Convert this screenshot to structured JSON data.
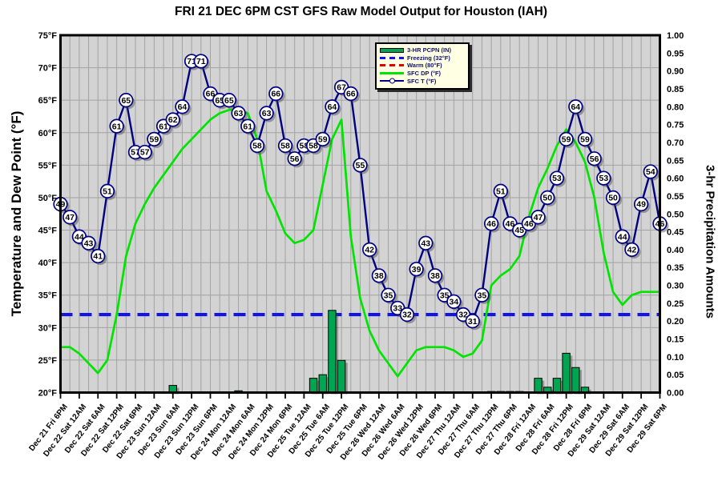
{
  "title": "FRI 21 DEC 6PM CST GFS Raw Model Output for Houston (IAH)",
  "colors": {
    "temperature_line": "#000080",
    "dewpoint_line": "#00e400",
    "freezing_line": "#1414e6",
    "warm_line": "#e00000",
    "precip_bar_fill": "#00a551",
    "precip_bar_border": "#000000",
    "plot_background": "#d3d3d3",
    "gridline": "#a2a2a2",
    "plot_border": "#000000",
    "legend_background": "#ffffe4",
    "legend_text": "#101070",
    "axis_text": "#000000"
  },
  "legend": {
    "items": [
      {
        "label": "3-HR PCPN (IN)",
        "swatch": "green-bar"
      },
      {
        "label": "Freezing (32°F)",
        "swatch": "blue-dashed-line"
      },
      {
        "label": "Warm (80°F)",
        "swatch": "red-dashed-line"
      },
      {
        "label": "SFC DP (°F)",
        "swatch": "green-line"
      },
      {
        "label": "SFC T (°F)",
        "swatch": "navy-line-circle-marker"
      }
    ]
  },
  "chart_data": {
    "type": "line",
    "title": "FRI 21 DEC 6PM CST GFS Raw Model Output for Houston (IAH)",
    "x_interval_hours": 3,
    "x_points_count": 65,
    "x_tick_labels": [
      "Dec 21 Fri 6PM",
      "Dec 22 Sat 12AM",
      "Dec 22 Sat 6AM",
      "Dec 22 Sat 12PM",
      "Dec 22 Sat 6PM",
      "Dec 23 Sun 12AM",
      "Dec 23 Sun 6AM",
      "Dec 23 Sun 12PM",
      "Dec 23 Sun 6PM",
      "Dec 24 Mon 12AM",
      "Dec 24 Mon 6AM",
      "Dec 24 Mon 12PM",
      "Dec 24 Mon 6PM",
      "Dec 25 Tue 12AM",
      "Dec 25 Tue 6AM",
      "Dec 25 Tue 12PM",
      "Dec 25 Tue 6PM",
      "Dec 26 Wed 12AM",
      "Dec 26 Wed 6AM",
      "Dec 26 Wed 12PM",
      "Dec 26 Wed 6PM",
      "Dec 27 Thu 12AM",
      "Dec 27 Thu 6AM",
      "Dec 27 Thu 12PM",
      "Dec 27 Thu 6PM",
      "Dec 28 Fri 12AM",
      "Dec 28 Fri 6AM",
      "Dec 28 Fri 12PM",
      "Dec 28 Fri 6PM",
      "Dec 29 Sat 12AM",
      "Dec 29 Sat 6AM",
      "Dec 29 Sat 12PM",
      "Dec 29 Sat 6PM"
    ],
    "y_left": {
      "label": "Temperature and Dew Point (°F)",
      "min": 20,
      "max": 75,
      "step": 5,
      "tick_labels": [
        "75°F",
        "70°F",
        "65°F",
        "60°F",
        "55°F",
        "50°F",
        "45°F",
        "40°F",
        "35°F",
        "30°F",
        "25°F",
        "20°F"
      ]
    },
    "y_right": {
      "label": "3-hr Precipitation Amounts",
      "min": 0,
      "max": 1,
      "step": 0.05,
      "tick_labels": [
        "1.00",
        "0.95",
        "0.90",
        "0.85",
        "0.80",
        "0.75",
        "0.70",
        "0.65",
        "0.60",
        "0.55",
        "0.50",
        "0.45",
        "0.40",
        "0.35",
        "0.30",
        "0.25",
        "0.20",
        "0.15",
        "0.10",
        "0.05",
        "0.00"
      ]
    },
    "series": [
      {
        "name": "SFC T (°F)",
        "type": "line-numbered-markers",
        "color": "#000080",
        "values": [
          49,
          47,
          44,
          43,
          41,
          51,
          61,
          65,
          57,
          57,
          59,
          61,
          62,
          64,
          71,
          71,
          66,
          65,
          65,
          63,
          61,
          58,
          63,
          66,
          58,
          56,
          58,
          58,
          59,
          64,
          67,
          66,
          55,
          42,
          38,
          35,
          33,
          32,
          39,
          43,
          38,
          35,
          34,
          32,
          31,
          35,
          46,
          51,
          46,
          45,
          46,
          47,
          50,
          53,
          59,
          64,
          59,
          56,
          53,
          50,
          44,
          42,
          49,
          54,
          46
        ]
      },
      {
        "name": "SFC DP (°F)",
        "type": "line",
        "color": "#00e400",
        "values": [
          27,
          27,
          26,
          24.5,
          23,
          25,
          32,
          41,
          46,
          49,
          51.5,
          53.5,
          55.5,
          57.5,
          59,
          60.5,
          62,
          63,
          63.5,
          63.5,
          63,
          59,
          51,
          48,
          44.5,
          43,
          43.5,
          45,
          52,
          59,
          62,
          44,
          34.5,
          29.5,
          26.5,
          24.5,
          22.5,
          24.5,
          26.5,
          27,
          27,
          27,
          26.5,
          25.5,
          26,
          28,
          36.5,
          38,
          39,
          41,
          47,
          51.5,
          54.5,
          58,
          60.5,
          58.5,
          55.5,
          50,
          41.5,
          35.5,
          33.5,
          35,
          35.5,
          35.5,
          35.5
        ]
      },
      {
        "name": "3-HR PCPN (IN)",
        "type": "bar",
        "color": "#00a551",
        "axis": "right",
        "values": [
          0,
          0,
          0,
          0,
          0,
          0,
          0,
          0,
          0,
          0,
          0,
          0,
          0.02,
          0,
          0,
          0,
          0,
          0,
          0,
          0.005,
          0,
          0,
          0,
          0,
          0,
          0,
          0,
          0.04,
          0.05,
          0.23,
          0.09,
          0,
          0,
          0,
          0,
          0,
          0,
          0,
          0,
          0,
          0,
          0,
          0,
          0,
          0,
          0,
          0.003,
          0.003,
          0.003,
          0.003,
          0,
          0.04,
          0.015,
          0.04,
          0.11,
          0.07,
          0.015,
          0,
          0,
          0,
          0,
          0,
          0,
          0,
          0
        ]
      },
      {
        "name": "Freezing (32°F)",
        "type": "hline-dashed",
        "color": "#1414e6",
        "value": 32,
        "visible": true
      },
      {
        "name": "Warm (80°F)",
        "type": "hline-dashed",
        "color": "#e00000",
        "value": 80,
        "visible": false
      }
    ],
    "legend_position": "top-center-inside",
    "grid": true
  }
}
